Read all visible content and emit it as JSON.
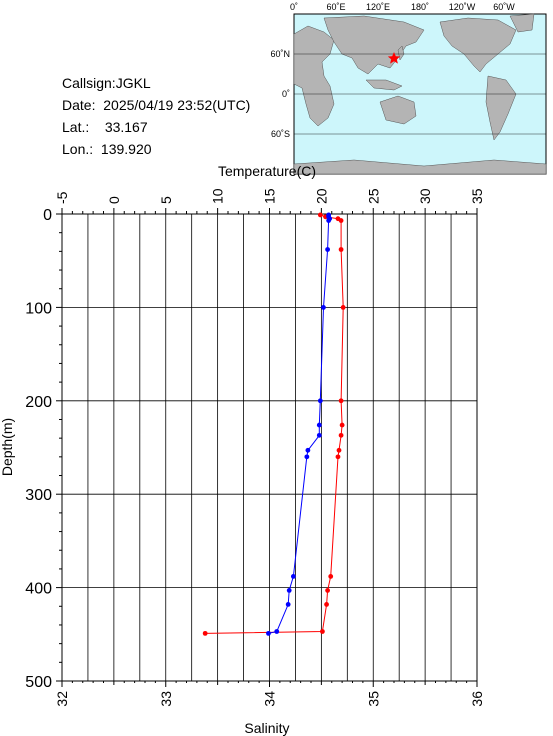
{
  "station": {
    "callsign_label": "Callsign:",
    "callsign": "JGKL",
    "date_label": "Date:",
    "date": "2025/04/19 23:52(UTC)",
    "lat_label": "Lat.:",
    "lat": "33.167",
    "lon_label": "Lon.:",
    "lon": "139.920"
  },
  "map": {
    "lon_labels": [
      "0˚",
      "60˚E",
      "120˚E",
      "180˚",
      "120˚W",
      "60˚W"
    ],
    "lat_labels": [
      "60˚N",
      "0˚",
      "60˚S"
    ],
    "ocean_color": "#cdf6fb",
    "land_color": "#b4b4b4",
    "marker": "star-icon",
    "marker_color": "#ff0000"
  },
  "chart_data": {
    "type": "line",
    "title": "",
    "top_axis": {
      "label": "Temperature(C)",
      "range": [
        -5,
        35
      ],
      "ticks": [
        "-5",
        "0",
        "5",
        "10",
        "15",
        "20",
        "25",
        "30",
        "35"
      ]
    },
    "bottom_axis": {
      "label": "Salinity",
      "range": [
        32,
        36
      ],
      "ticks": [
        "32",
        "33",
        "34",
        "35",
        "36"
      ]
    },
    "left_axis": {
      "label": "Depth(m)",
      "range": [
        0,
        500
      ],
      "inverted": true,
      "ticks": [
        "0",
        "100",
        "200",
        "300",
        "400",
        "500"
      ]
    },
    "grid": true,
    "series": [
      {
        "name": "Temperature",
        "axis": "top",
        "color": "#ff0000",
        "points": [
          {
            "depth": 1,
            "value": 19.9
          },
          {
            "depth": 3,
            "value": 20.4
          },
          {
            "depth": 5,
            "value": 21.6
          },
          {
            "depth": 7,
            "value": 21.9
          },
          {
            "depth": 38,
            "value": 21.9
          },
          {
            "depth": 100,
            "value": 22.1
          },
          {
            "depth": 200,
            "value": 21.9
          },
          {
            "depth": 226,
            "value": 22.0
          },
          {
            "depth": 237,
            "value": 21.9
          },
          {
            "depth": 253,
            "value": 21.7
          },
          {
            "depth": 260,
            "value": 21.6
          },
          {
            "depth": 388,
            "value": 20.9
          },
          {
            "depth": 403,
            "value": 20.6
          },
          {
            "depth": 418,
            "value": 20.5
          },
          {
            "depth": 447,
            "value": 20.1
          },
          {
            "depth": 449,
            "value": 8.8
          }
        ]
      },
      {
        "name": "Salinity",
        "axis": "bottom",
        "color": "#0000ff",
        "points": [
          {
            "depth": 1,
            "value": 34.57
          },
          {
            "depth": 3,
            "value": 34.57
          },
          {
            "depth": 5,
            "value": 34.58
          },
          {
            "depth": 7,
            "value": 34.57
          },
          {
            "depth": 38,
            "value": 34.56
          },
          {
            "depth": 100,
            "value": 34.52
          },
          {
            "depth": 200,
            "value": 34.49
          },
          {
            "depth": 226,
            "value": 34.48
          },
          {
            "depth": 237,
            "value": 34.48
          },
          {
            "depth": 253,
            "value": 34.37
          },
          {
            "depth": 260,
            "value": 34.36
          },
          {
            "depth": 388,
            "value": 34.23
          },
          {
            "depth": 403,
            "value": 34.19
          },
          {
            "depth": 418,
            "value": 34.18
          },
          {
            "depth": 447,
            "value": 34.07
          },
          {
            "depth": 449,
            "value": 33.99
          }
        ]
      }
    ]
  }
}
